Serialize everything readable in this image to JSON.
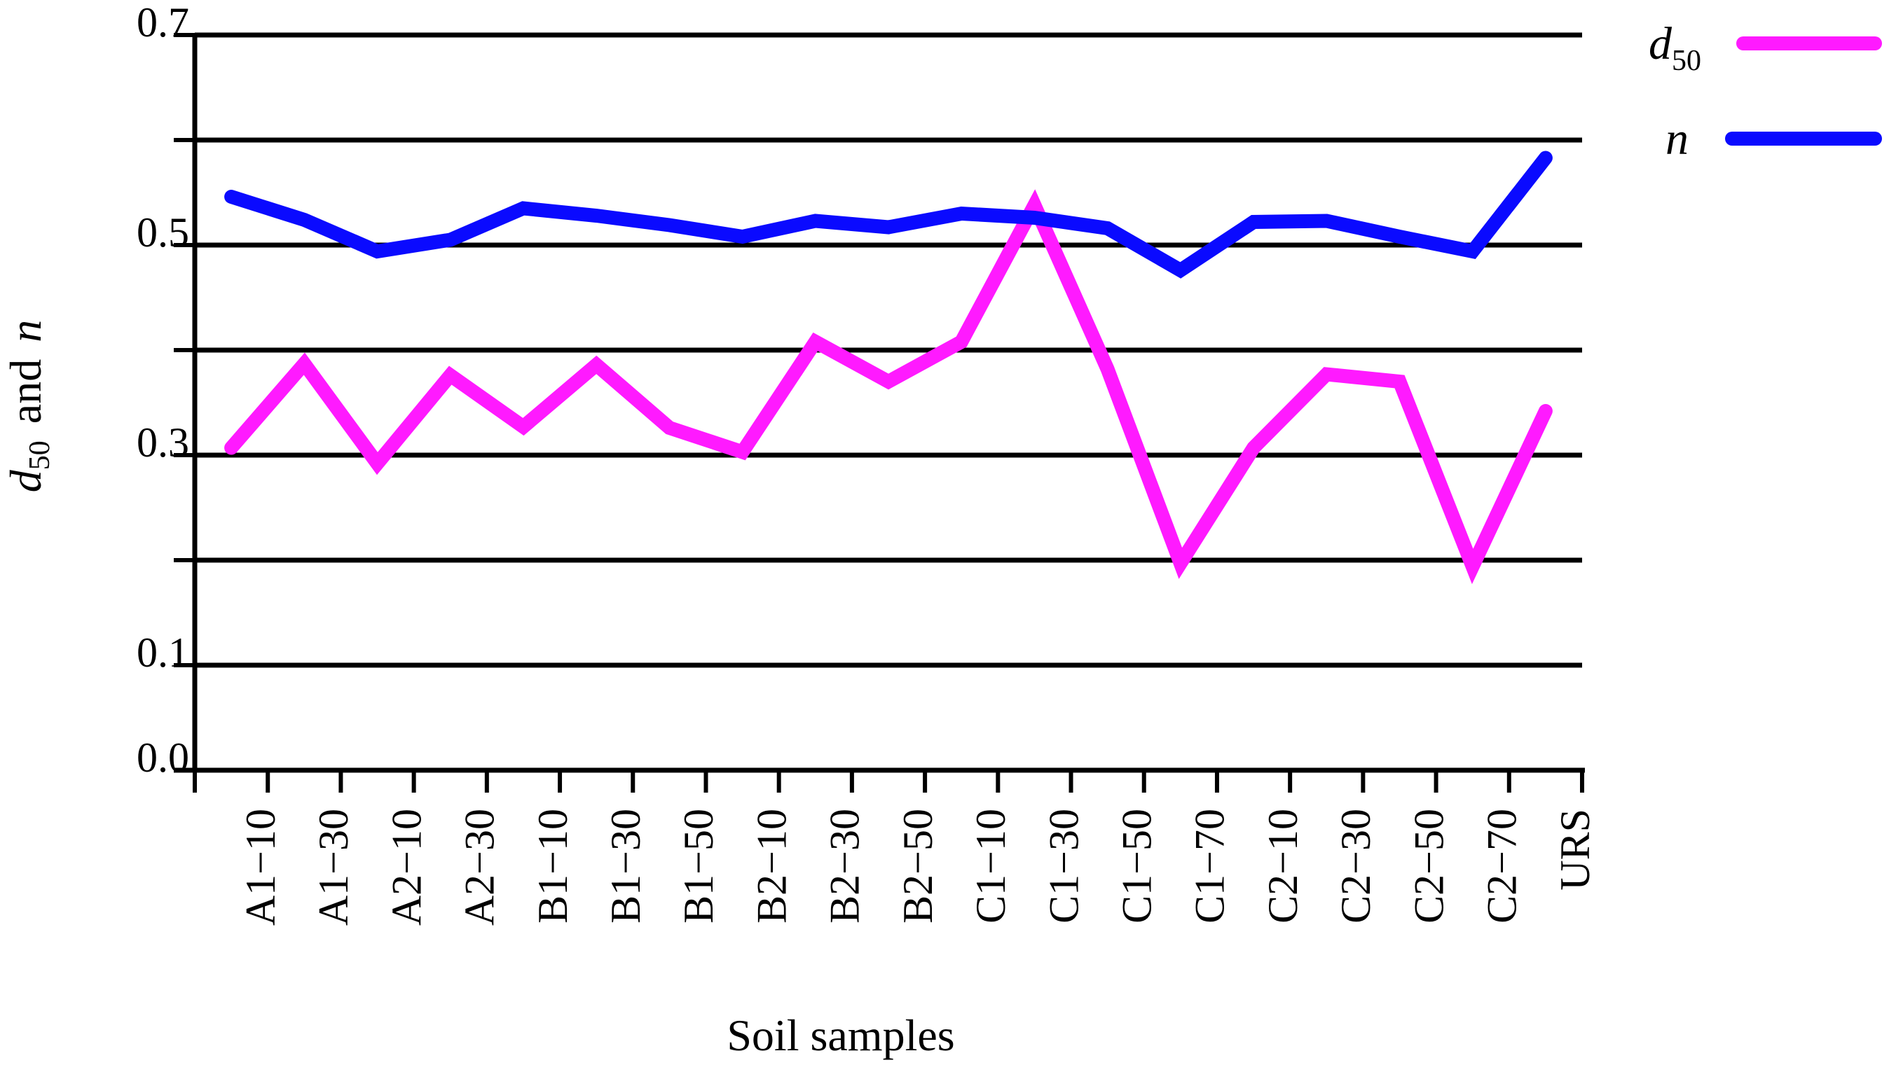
{
  "chart_data": {
    "type": "line",
    "title": "",
    "xlabel": "Soil samples",
    "ylabel": {
      "prefix": "d",
      "subscript": "50",
      "connector": "and",
      "variable": "n"
    },
    "ylim": [
      0.0,
      0.7
    ],
    "yticks": [
      0.0,
      0.1,
      0.2,
      0.3,
      0.4,
      0.5,
      0.6,
      0.7
    ],
    "ytick_labels": [
      "0.0",
      "0.1",
      "",
      "0.3",
      "",
      "0.5",
      "",
      "0.7"
    ],
    "grid": "horizontal",
    "legend_position": "top-right",
    "categories": [
      "A1−10",
      "A1−30",
      "A2−10",
      "A2−30",
      "B1−10",
      "B1−30",
      "B1−50",
      "B2−10",
      "B2−30",
      "B2−50",
      "C1−10",
      "C1−30",
      "C1−50",
      "C1−70",
      "C2−10",
      "C2−30",
      "C2−50",
      "C2−70",
      "URS"
    ],
    "x": [
      0.5,
      1.5,
      2.5,
      3.5,
      4.5,
      5.5,
      6.5,
      7.5,
      8.5,
      9.5,
      10.5,
      11.5,
      12.5,
      13.5,
      14.5,
      15.5,
      16.5,
      17.5,
      18.5
    ],
    "series": [
      {
        "name": "d50",
        "label_main": "d",
        "label_sub": "50",
        "color": "#ff1aff",
        "values": [
          0.307,
          0.387,
          0.292,
          0.376,
          0.327,
          0.386,
          0.326,
          0.303,
          0.408,
          0.37,
          0.408,
          0.538,
          0.382,
          0.197,
          0.307,
          0.377,
          0.37,
          0.194,
          0.342
        ]
      },
      {
        "name": "n",
        "label_main": "n",
        "label_sub": "",
        "color": "#0a0aff",
        "values": [
          0.546,
          0.524,
          0.494,
          0.505,
          0.535,
          0.528,
          0.519,
          0.508,
          0.523,
          0.517,
          0.53,
          0.526,
          0.516,
          0.476,
          0.522,
          0.523,
          0.508,
          0.494,
          0.583
        ]
      }
    ]
  }
}
